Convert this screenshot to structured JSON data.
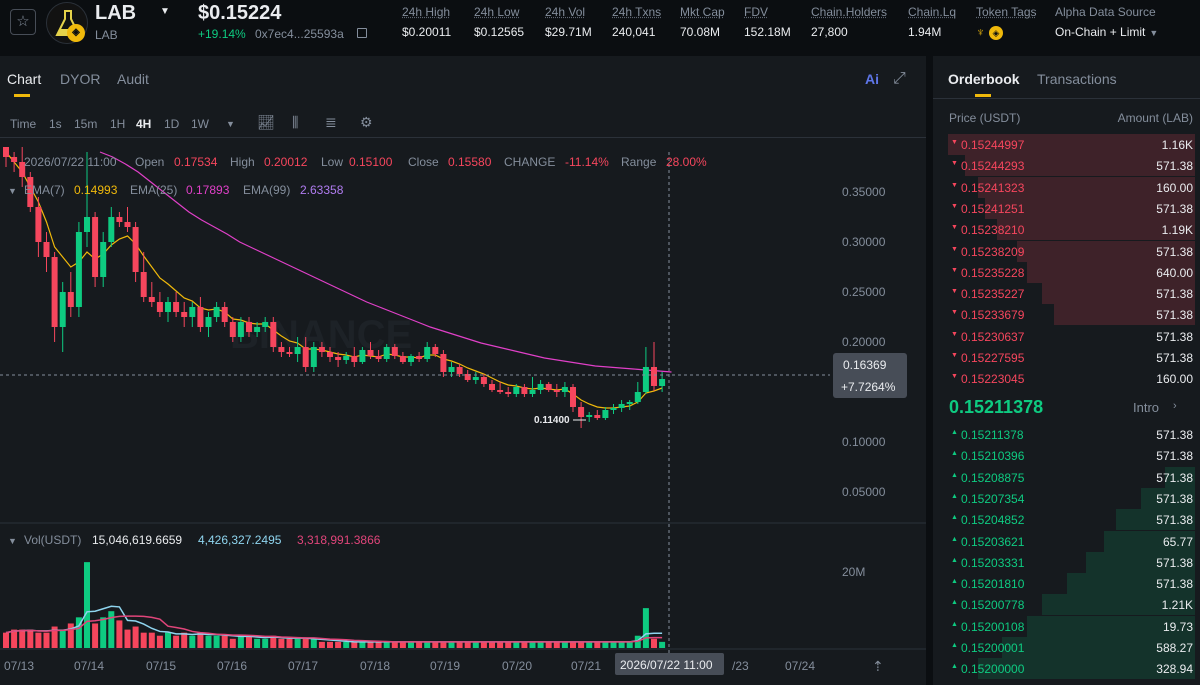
{
  "token": {
    "symbol": "LAB",
    "subname": "LAB",
    "price": "$0.15224",
    "change": "+19.14%",
    "address": "0x7ec4...25593a"
  },
  "stats": [
    {
      "label": "24h High",
      "value": "$0.20011"
    },
    {
      "label": "24h Low",
      "value": "$0.12565"
    },
    {
      "label": "24h Vol",
      "value": "$29.71M"
    },
    {
      "label": "24h Txns",
      "value": "240,041"
    },
    {
      "label": "Mkt Cap",
      "value": "70.08M"
    },
    {
      "label": "FDV",
      "value": "152.18M"
    },
    {
      "label": "Chain.Holders",
      "value": "27,800"
    },
    {
      "label": "Chain.Lq",
      "value": "1.94M"
    },
    {
      "label": "Token Tags",
      "value": ""
    },
    {
      "label": "Alpha Data Source",
      "value": "On-Chain + Limit"
    }
  ],
  "chart_tabs": [
    "Chart",
    "DYOR",
    "Audit"
  ],
  "ai_label": "Ai",
  "intervals": [
    "Time",
    "1s",
    "15m",
    "1H",
    "4H",
    "1D",
    "1W"
  ],
  "active_interval": "4H",
  "ohlc": {
    "date": "2026/07/22 11:00",
    "open_label": "Open",
    "open": "0.17534",
    "high_label": "High",
    "high": "0.20012",
    "low_label": "Low",
    "low": "0.15100",
    "close_label": "Close",
    "close": "0.15580",
    "change_label": "CHANGE",
    "change": "-11.14%",
    "range_label": "Range",
    "range": "28.00%"
  },
  "ema": {
    "ema7_label": "EMA(7)",
    "ema7": "0.14993",
    "ema25_label": "EMA(25)",
    "ema25": "0.17893",
    "ema99_label": "EMA(99)",
    "ema99": "2.63358"
  },
  "volume_legend": {
    "label": "Vol(USDT)",
    "v1": "15,046,619.6659",
    "v2": "4,426,327.2495",
    "v3": "3,318,991.3866"
  },
  "price_axis": [
    "0.35000",
    "0.30000",
    "0.25000",
    "0.20000",
    "0.10000",
    "0.05000"
  ],
  "volume_axis": [
    "20M"
  ],
  "crosshair": {
    "price": "0.16369",
    "pct": "+7.7264%",
    "time": "2026/07/22 11:00"
  },
  "low_marker": "0.11400",
  "watermark": "BINANCE",
  "x_axis": [
    "07/13",
    "07/14",
    "07/15",
    "07/16",
    "07/17",
    "07/18",
    "07/19",
    "07/20",
    "07/21",
    "/23",
    "07/24"
  ],
  "colors": {
    "up": "#0ecb81",
    "down": "#f6465d",
    "accent": "#f0b90b",
    "ema7": "#f0b90b",
    "ema25": "#e040c8",
    "ema99": "#b07cf0",
    "vol_ma1": "#8fd5ef",
    "vol_ma2": "#e0457a"
  },
  "chart_data": {
    "type": "candlestick",
    "interval": "4H",
    "y_axis_ticks": [
      0.35,
      0.3,
      0.25,
      0.2,
      0.1,
      0.05
    ],
    "ylim": [
      0.02,
      0.39
    ],
    "volume_ylim": [
      0,
      30000000
    ],
    "candles": [
      [
        0.395,
        0.4,
        0.375,
        0.385
      ],
      [
        0.385,
        0.39,
        0.37,
        0.38
      ],
      [
        0.38,
        0.395,
        0.355,
        0.365
      ],
      [
        0.365,
        0.37,
        0.33,
        0.335
      ],
      [
        0.335,
        0.345,
        0.285,
        0.3
      ],
      [
        0.3,
        0.31,
        0.27,
        0.285
      ],
      [
        0.285,
        0.29,
        0.2,
        0.215
      ],
      [
        0.215,
        0.26,
        0.19,
        0.25
      ],
      [
        0.25,
        0.27,
        0.225,
        0.235
      ],
      [
        0.235,
        0.32,
        0.225,
        0.31
      ],
      [
        0.31,
        0.39,
        0.295,
        0.325
      ],
      [
        0.325,
        0.33,
        0.255,
        0.265
      ],
      [
        0.265,
        0.31,
        0.255,
        0.3
      ],
      [
        0.3,
        0.335,
        0.295,
        0.325
      ],
      [
        0.325,
        0.33,
        0.315,
        0.32
      ],
      [
        0.32,
        0.335,
        0.31,
        0.315
      ],
      [
        0.315,
        0.32,
        0.26,
        0.27
      ],
      [
        0.27,
        0.29,
        0.24,
        0.245
      ],
      [
        0.245,
        0.26,
        0.235,
        0.24
      ],
      [
        0.24,
        0.25,
        0.225,
        0.23
      ],
      [
        0.23,
        0.245,
        0.22,
        0.24
      ],
      [
        0.24,
        0.25,
        0.225,
        0.23
      ],
      [
        0.23,
        0.24,
        0.215,
        0.225
      ],
      [
        0.225,
        0.24,
        0.215,
        0.235
      ],
      [
        0.235,
        0.245,
        0.21,
        0.215
      ],
      [
        0.215,
        0.23,
        0.205,
        0.225
      ],
      [
        0.225,
        0.24,
        0.22,
        0.235
      ],
      [
        0.235,
        0.24,
        0.215,
        0.22
      ],
      [
        0.22,
        0.225,
        0.2,
        0.205
      ],
      [
        0.205,
        0.225,
        0.2,
        0.22
      ],
      [
        0.22,
        0.225,
        0.205,
        0.21
      ],
      [
        0.21,
        0.22,
        0.205,
        0.215
      ],
      [
        0.215,
        0.225,
        0.21,
        0.22
      ],
      [
        0.22,
        0.225,
        0.19,
        0.195
      ],
      [
        0.195,
        0.2,
        0.185,
        0.19
      ],
      [
        0.19,
        0.195,
        0.185,
        0.188
      ],
      [
        0.188,
        0.205,
        0.18,
        0.195
      ],
      [
        0.195,
        0.205,
        0.17,
        0.175
      ],
      [
        0.175,
        0.2,
        0.17,
        0.195
      ],
      [
        0.195,
        0.2,
        0.185,
        0.19
      ],
      [
        0.19,
        0.195,
        0.18,
        0.185
      ],
      [
        0.185,
        0.19,
        0.175,
        0.182
      ],
      [
        0.182,
        0.19,
        0.178,
        0.186
      ],
      [
        0.186,
        0.195,
        0.175,
        0.18
      ],
      [
        0.18,
        0.195,
        0.178,
        0.192
      ],
      [
        0.192,
        0.2,
        0.183,
        0.186
      ],
      [
        0.186,
        0.192,
        0.18,
        0.183
      ],
      [
        0.183,
        0.198,
        0.18,
        0.195
      ],
      [
        0.195,
        0.198,
        0.183,
        0.186
      ],
      [
        0.186,
        0.19,
        0.178,
        0.18
      ],
      [
        0.18,
        0.188,
        0.176,
        0.186
      ],
      [
        0.186,
        0.19,
        0.18,
        0.183
      ],
      [
        0.183,
        0.2,
        0.18,
        0.195
      ],
      [
        0.195,
        0.198,
        0.185,
        0.188
      ],
      [
        0.188,
        0.192,
        0.165,
        0.17
      ],
      [
        0.17,
        0.18,
        0.165,
        0.175
      ],
      [
        0.175,
        0.178,
        0.165,
        0.168
      ],
      [
        0.168,
        0.172,
        0.16,
        0.162
      ],
      [
        0.162,
        0.17,
        0.158,
        0.165
      ],
      [
        0.165,
        0.168,
        0.155,
        0.158
      ],
      [
        0.158,
        0.162,
        0.15,
        0.152
      ],
      [
        0.152,
        0.16,
        0.148,
        0.15
      ],
      [
        0.15,
        0.155,
        0.145,
        0.148
      ],
      [
        0.148,
        0.158,
        0.145,
        0.155
      ],
      [
        0.155,
        0.158,
        0.145,
        0.148
      ],
      [
        0.148,
        0.165,
        0.145,
        0.152
      ],
      [
        0.152,
        0.162,
        0.148,
        0.158
      ],
      [
        0.158,
        0.16,
        0.15,
        0.152
      ],
      [
        0.152,
        0.158,
        0.145,
        0.15
      ],
      [
        0.15,
        0.16,
        0.145,
        0.155
      ],
      [
        0.155,
        0.158,
        0.13,
        0.135
      ],
      [
        0.135,
        0.14,
        0.114,
        0.125
      ],
      [
        0.125,
        0.13,
        0.12,
        0.127
      ],
      [
        0.127,
        0.132,
        0.122,
        0.124
      ],
      [
        0.124,
        0.135,
        0.122,
        0.132
      ],
      [
        0.132,
        0.138,
        0.128,
        0.134
      ],
      [
        0.134,
        0.142,
        0.13,
        0.138
      ],
      [
        0.138,
        0.142,
        0.132,
        0.14
      ],
      [
        0.14,
        0.16,
        0.138,
        0.15
      ],
      [
        0.15,
        0.195,
        0.148,
        0.175
      ],
      [
        0.175,
        0.2,
        0.151,
        0.156
      ],
      [
        0.156,
        0.17,
        0.15,
        0.163
      ]
    ],
    "ema7": [
      0.39,
      0.38,
      0.37,
      0.355,
      0.34,
      0.32,
      0.295,
      0.285,
      0.275,
      0.28,
      0.29,
      0.283,
      0.288,
      0.297,
      0.303,
      0.306,
      0.298,
      0.286,
      0.275,
      0.264,
      0.258,
      0.251,
      0.244,
      0.241,
      0.234,
      0.232,
      0.233,
      0.23,
      0.223,
      0.222,
      0.219,
      0.218,
      0.218,
      0.212,
      0.206,
      0.201,
      0.199,
      0.193,
      0.193,
      0.192,
      0.19,
      0.188,
      0.187,
      0.185,
      0.187,
      0.186,
      0.185,
      0.188,
      0.187,
      0.185,
      0.185,
      0.184,
      0.187,
      0.187,
      0.183,
      0.181,
      0.178,
      0.174,
      0.171,
      0.168,
      0.164,
      0.16,
      0.157,
      0.156,
      0.154,
      0.153,
      0.154,
      0.153,
      0.152,
      0.153,
      0.148,
      0.142,
      0.138,
      0.135,
      0.134,
      0.134,
      0.135,
      0.136,
      0.14,
      0.149,
      0.151,
      0.154
    ],
    "ema25": [
      0.4,
      0.397,
      0.393,
      0.388,
      0.381,
      0.372,
      0.361,
      0.352,
      0.343,
      0.341,
      0.339,
      0.333,
      0.329,
      0.328,
      0.327,
      0.326,
      0.321,
      0.315,
      0.309,
      0.302,
      0.297,
      0.292,
      0.287,
      0.283,
      0.278,
      0.274,
      0.271,
      0.267,
      0.262,
      0.258,
      0.254,
      0.251,
      0.248,
      0.244,
      0.24,
      0.236,
      0.233,
      0.229,
      0.226,
      0.224,
      0.221,
      0.218,
      0.216,
      0.213,
      0.211,
      0.21,
      0.208,
      0.207,
      0.206,
      0.204,
      0.203,
      0.201,
      0.2,
      0.2,
      0.198,
      0.196,
      0.194,
      0.191,
      0.189,
      0.187,
      0.185,
      0.183,
      0.18,
      0.178,
      0.176,
      0.174,
      0.173,
      0.171,
      0.169,
      0.168,
      0.165,
      0.162,
      0.159,
      0.157,
      0.155,
      0.154,
      0.152,
      0.151,
      0.151,
      0.153,
      0.153,
      0.154
    ],
    "ema99_visible": [
      0.39,
      0.385,
      0.378,
      0.37,
      0.36,
      0.35,
      0.34,
      0.33,
      0.322,
      0.315,
      0.308,
      0.3,
      0.294,
      0.288,
      0.282,
      0.276,
      0.27,
      0.264,
      0.258,
      0.252,
      0.246,
      0.24,
      0.235,
      0.23,
      0.225,
      0.22,
      0.215,
      0.211,
      0.207,
      0.203,
      0.199,
      0.196,
      0.193,
      0.19,
      0.187,
      0.184,
      0.182,
      0.18,
      0.178,
      0.176,
      0.175,
      0.174,
      0.173,
      0.172,
      0.171,
      0.17
    ],
    "volume": [
      5,
      6,
      6,
      6,
      5,
      5,
      7,
      6,
      8,
      10,
      28,
      8,
      10,
      12,
      9,
      6,
      7,
      5,
      5,
      4,
      5,
      4,
      5,
      4,
      5,
      4,
      4,
      4,
      3,
      4,
      4,
      3,
      3,
      4,
      3,
      3,
      3,
      3,
      3,
      2,
      2,
      2,
      2,
      2,
      2,
      2,
      2,
      2,
      2,
      2,
      2,
      2,
      2,
      2,
      2,
      2,
      2,
      2,
      2,
      2,
      2,
      2,
      2,
      2,
      2,
      2,
      2,
      2,
      2,
      2,
      2,
      2,
      2,
      2,
      2,
      2,
      2,
      2,
      4,
      13,
      3,
      2
    ],
    "volume_unit": "M USDT"
  },
  "orderbook": {
    "tabs": [
      "Orderbook",
      "Transactions"
    ],
    "price_header": "Price (USDT)",
    "amount_header": "Amount (LAB)",
    "asks": [
      {
        "price": "0.15244997",
        "amount": "1.16K",
        "depth": 1.0
      },
      {
        "price": "0.15244293",
        "amount": "571.38",
        "depth": 0.93
      },
      {
        "price": "0.15241323",
        "amount": "160.00",
        "depth": 0.88
      },
      {
        "price": "0.15241251",
        "amount": "571.38",
        "depth": 0.85
      },
      {
        "price": "0.15238210",
        "amount": "1.19K",
        "depth": 0.8
      },
      {
        "price": "0.15238209",
        "amount": "571.38",
        "depth": 0.72
      },
      {
        "price": "0.15235228",
        "amount": "640.00",
        "depth": 0.68
      },
      {
        "price": "0.15235227",
        "amount": "571.38",
        "depth": 0.62
      },
      {
        "price": "0.15233679",
        "amount": "571.38",
        "depth": 0.57
      },
      {
        "price": "0.15230637",
        "amount": "571.38",
        "depth": 0.0
      },
      {
        "price": "0.15227595",
        "amount": "571.38",
        "depth": 0.0
      },
      {
        "price": "0.15223045",
        "amount": "160.00",
        "depth": 0.0
      }
    ],
    "mid_price": "0.15211378",
    "intro": "Intro",
    "bids": [
      {
        "price": "0.15211378",
        "amount": "571.38",
        "depth": 0.0
      },
      {
        "price": "0.15210396",
        "amount": "571.38",
        "depth": 0.0
      },
      {
        "price": "0.15208875",
        "amount": "571.38",
        "depth": 0.12
      },
      {
        "price": "0.15207354",
        "amount": "571.38",
        "depth": 0.22
      },
      {
        "price": "0.15204852",
        "amount": "571.38",
        "depth": 0.32
      },
      {
        "price": "0.15203621",
        "amount": "65.77",
        "depth": 0.37
      },
      {
        "price": "0.15203331",
        "amount": "571.38",
        "depth": 0.44
      },
      {
        "price": "0.15201810",
        "amount": "571.38",
        "depth": 0.52
      },
      {
        "price": "0.15200778",
        "amount": "1.21K",
        "depth": 0.62
      },
      {
        "price": "0.15200108",
        "amount": "19.73",
        "depth": 0.68
      },
      {
        "price": "0.15200001",
        "amount": "588.27",
        "depth": 0.78
      },
      {
        "price": "0.15200000",
        "amount": "328.94",
        "depth": 0.88
      }
    ]
  }
}
